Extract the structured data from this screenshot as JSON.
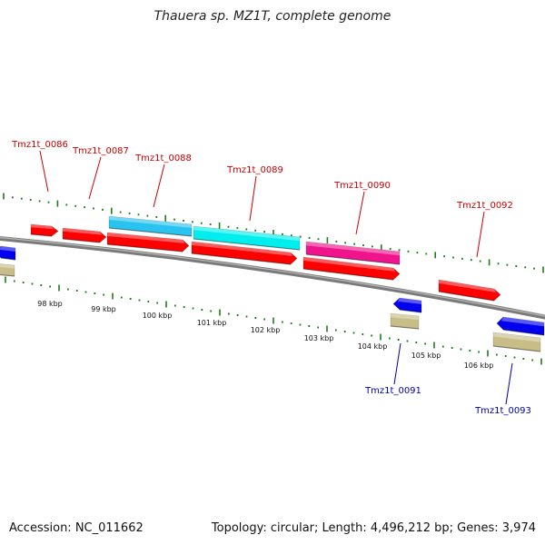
{
  "title": "Thauera sp. MZ1T, complete genome",
  "accession": "Accession: NC_011662",
  "summary": "Topology: circular; Length: 4,496,212 bp; Genes: 3,974",
  "colors": {
    "backbone": "#808080",
    "tick_green": "#1a7f1a",
    "forward_gene": "#ff0000",
    "reverse_gene": "#0000ee",
    "cyan_gene": "#29c3f0",
    "aqua_gene": "#00eeee",
    "pink_gene": "#f0148c",
    "tan_feature": "#c8bd86",
    "label_forward": "#cc0000",
    "label_reverse": "#0000aa"
  },
  "scale_labels": [
    "98 kbp",
    "99 kbp",
    "100 kbp",
    "101 kbp",
    "102 kbp",
    "103 kbp",
    "104 kbp",
    "105 kbp",
    "106 kbp"
  ],
  "genes": {
    "forward": [
      {
        "label": "Tmz1t_0086"
      },
      {
        "label": "Tmz1t_0087"
      },
      {
        "label": "Tmz1t_0088"
      },
      {
        "label": "Tmz1t_0089"
      },
      {
        "label": "Tmz1t_0090"
      },
      {
        "label": "Tmz1t_0092"
      }
    ],
    "reverse": [
      {
        "label": "Tmz1t_0091"
      },
      {
        "label": "Tmz1t_0093"
      }
    ]
  }
}
